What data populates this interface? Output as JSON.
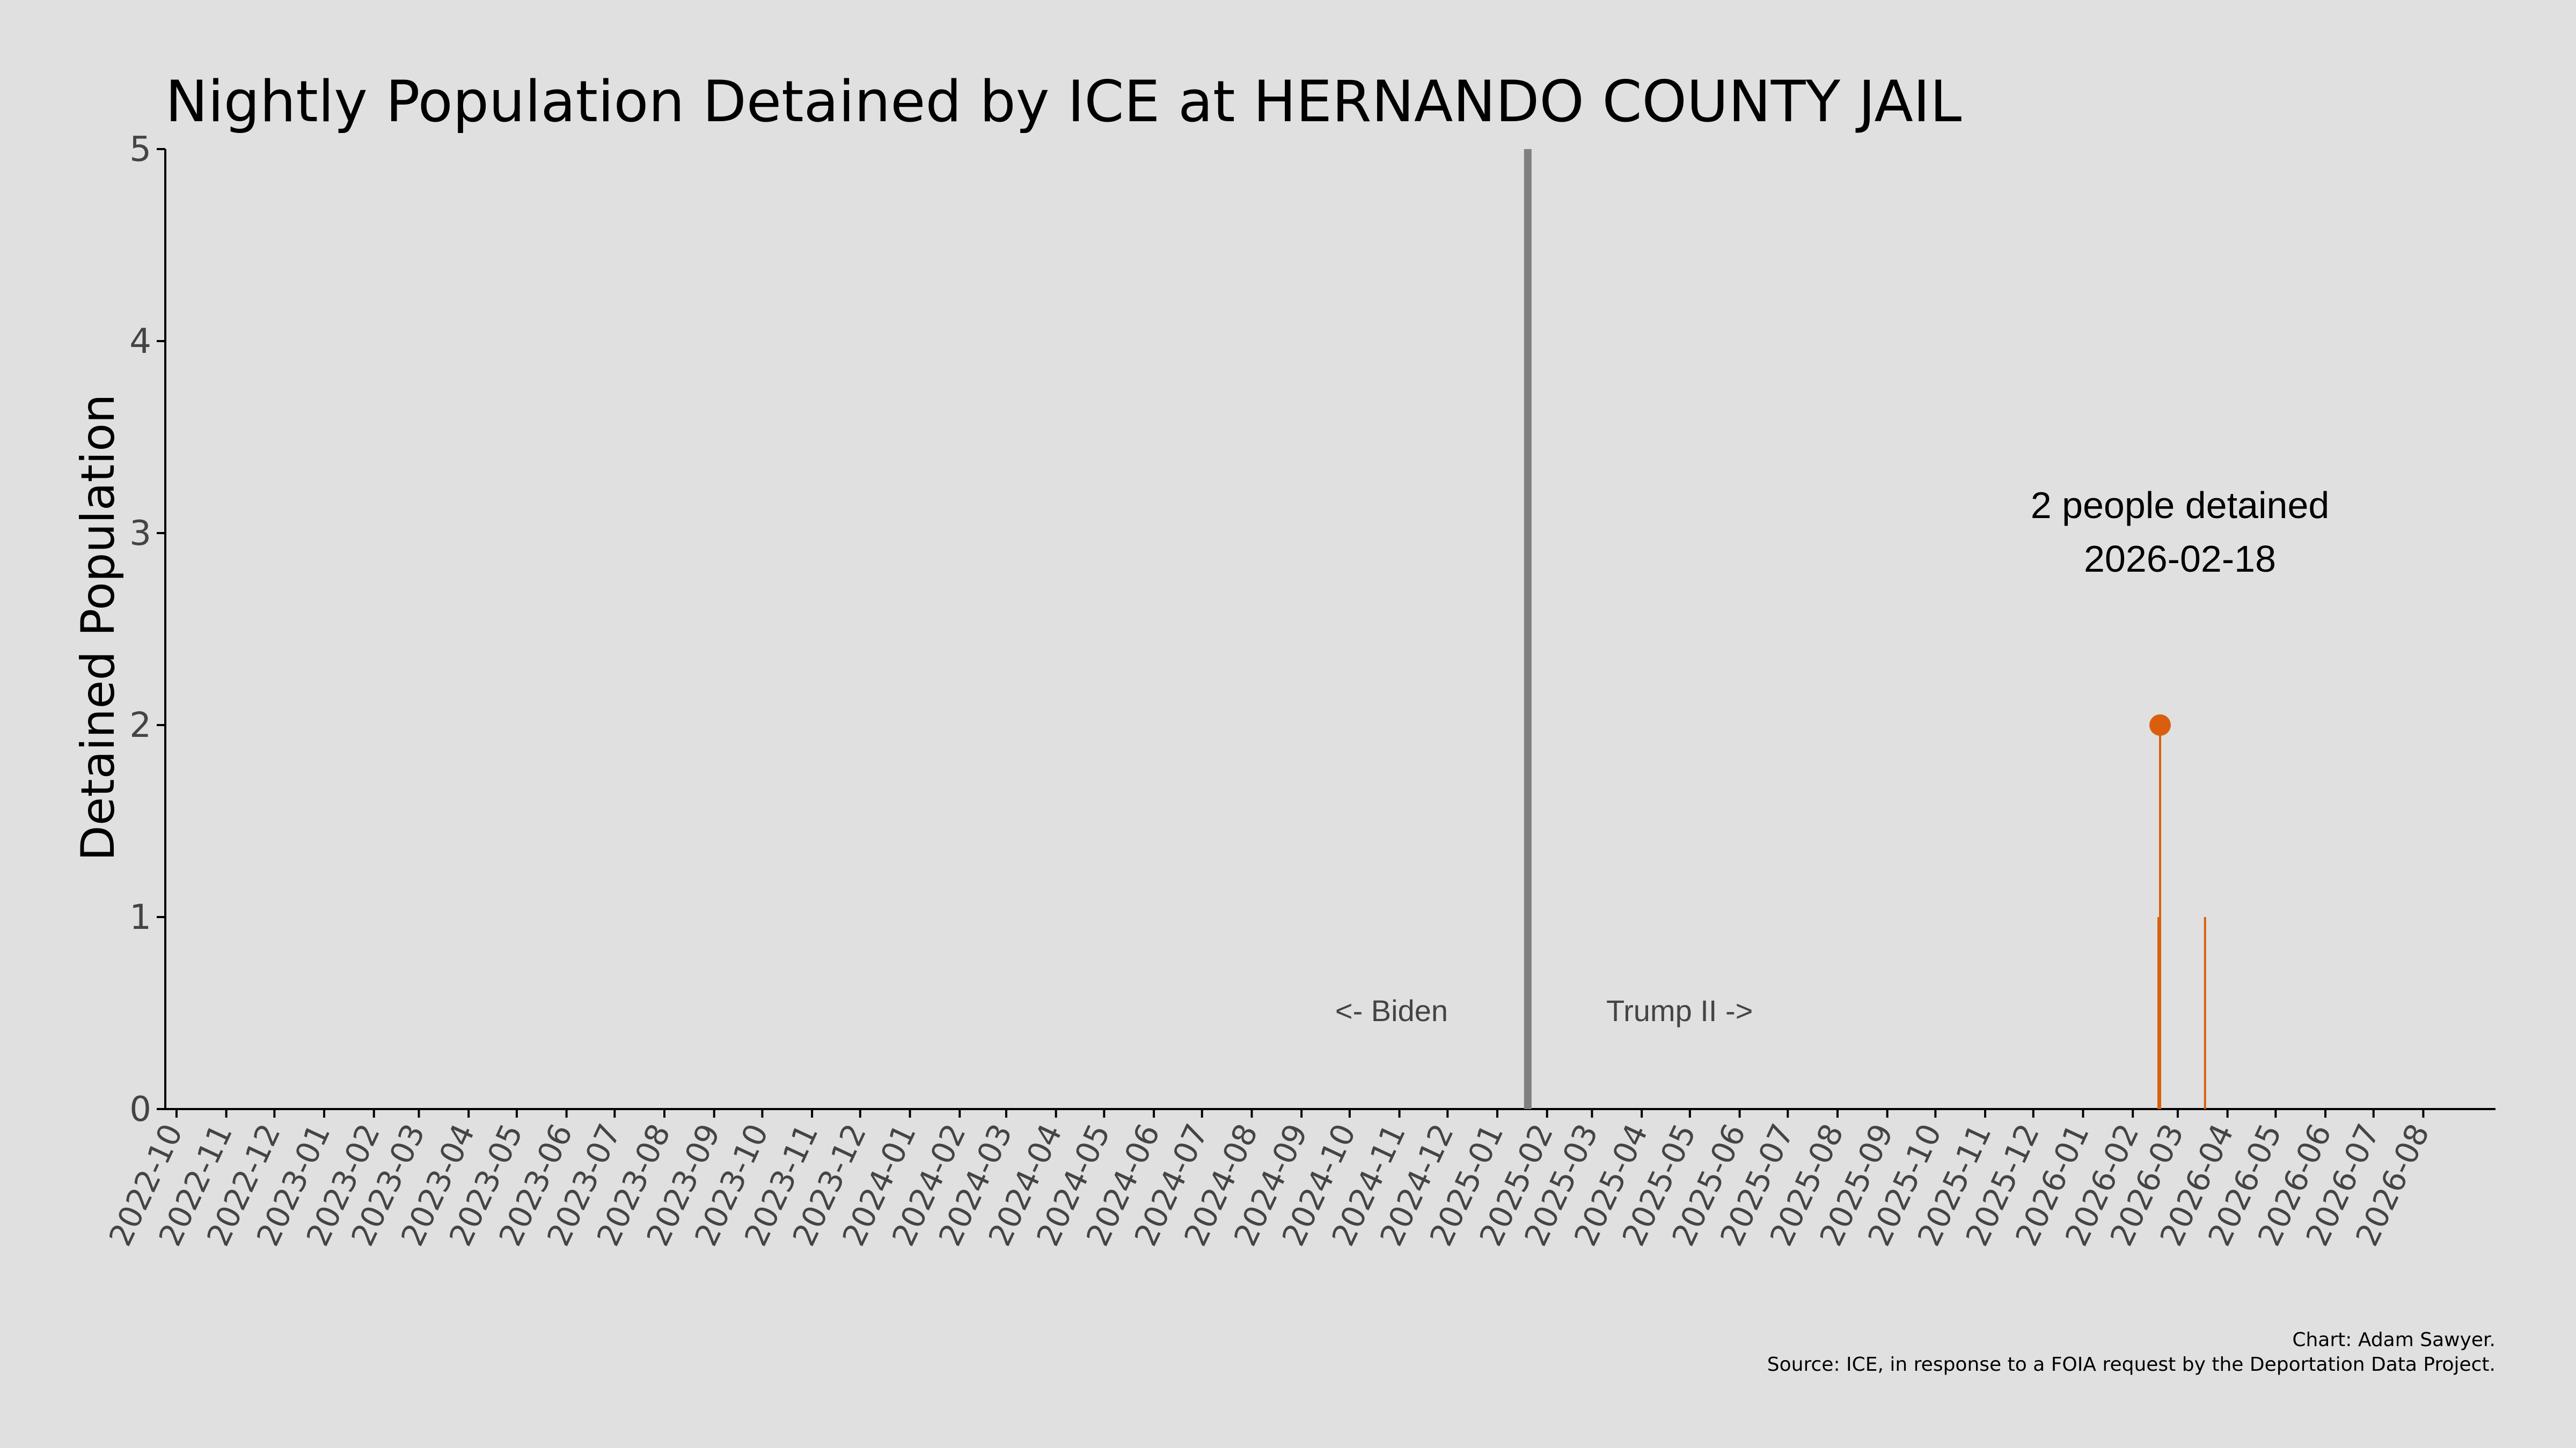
{
  "chart_data": {
    "type": "bar",
    "title": "Nightly Population Detained by ICE at HERNANDO COUNTY JAIL",
    "ylabel": "Detained Population",
    "xlabel": "",
    "ylim": [
      0,
      5
    ],
    "xlim": [
      "2022-09-24",
      "2026-09-15"
    ],
    "yticks": [
      0,
      1,
      2,
      3,
      4,
      5
    ],
    "xticks": [
      "2022-10",
      "2022-11",
      "2022-12",
      "2023-01",
      "2023-02",
      "2023-03",
      "2023-04",
      "2023-05",
      "2023-06",
      "2023-07",
      "2023-08",
      "2023-09",
      "2023-10",
      "2023-11",
      "2023-12",
      "2024-01",
      "2024-02",
      "2024-03",
      "2024-04",
      "2024-05",
      "2024-06",
      "2024-07",
      "2024-08",
      "2024-09",
      "2024-10",
      "2024-11",
      "2024-12",
      "2025-01",
      "2025-02",
      "2025-03",
      "2025-04",
      "2025-05",
      "2025-06",
      "2025-07",
      "2025-08",
      "2025-09",
      "2025-10",
      "2025-11",
      "2025-12",
      "2026-01",
      "2026-02",
      "2026-03",
      "2026-04",
      "2026-05",
      "2026-06",
      "2026-07",
      "2026-08"
    ],
    "series": [
      {
        "color": "#d95f0e",
        "points": [
          {
            "date": "2026-02-17",
            "value": 1
          },
          {
            "date": "2026-02-18",
            "value": 2
          },
          {
            "date": "2026-03-18",
            "value": 1
          }
        ]
      }
    ],
    "divider": {
      "date": "2025-01-20",
      "color": "#808080"
    },
    "era_labels": {
      "left": "<- Biden",
      "right": "Trump II ->"
    },
    "highlight": {
      "date": "2026-02-18",
      "value": 2,
      "line1": "2 people detained",
      "line2": "2026-02-18"
    },
    "grid": false,
    "legend": "none"
  },
  "credits": {
    "line1": "Chart: Adam Sawyer.",
    "line2": "Source: ICE, in response to a FOIA request by the Deportation Data Project."
  }
}
